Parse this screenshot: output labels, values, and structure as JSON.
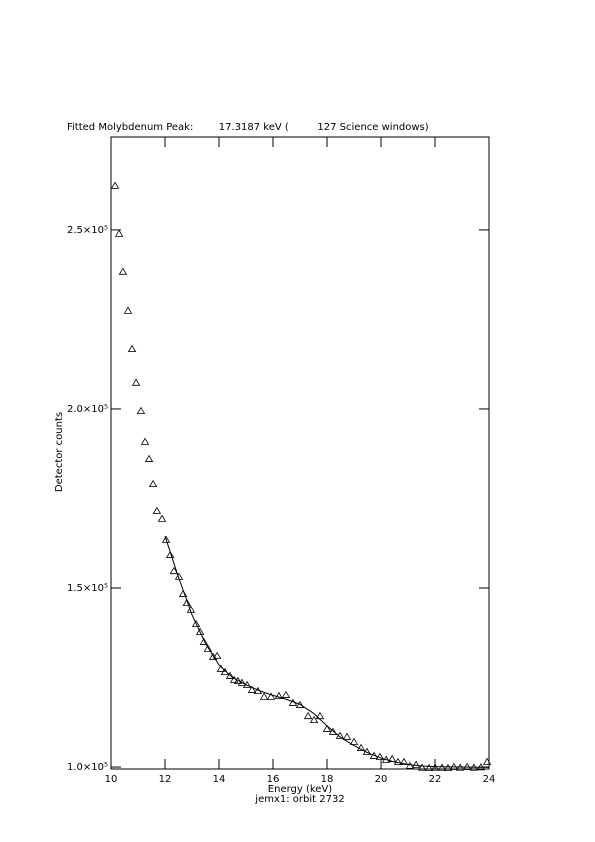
{
  "chart_data": {
    "type": "scatter",
    "title": "Fitted Molybdenum Peak:        17.3187 keV (         127 Science windows)",
    "xlabel": "Energy (keV)",
    "ylabel": "Detector counts",
    "subtitle": "jemx1: orbit 2732",
    "xlim": [
      10,
      24
    ],
    "ylim": [
      99450,
      275950
    ],
    "xticks": [
      10,
      12,
      14,
      16,
      18,
      20,
      22,
      24
    ],
    "yticks": [
      {
        "value": 100000,
        "label": "1.0×10⁵"
      },
      {
        "value": 150000,
        "label": "1.5×10⁵"
      },
      {
        "value": 200000,
        "label": "2.0×10⁵"
      },
      {
        "value": 250000,
        "label": "2.5×10⁵"
      }
    ],
    "color": "#000000",
    "series": [
      {
        "style": "triangle",
        "x": [
          10.15,
          10.3,
          10.44,
          10.63,
          10.78,
          10.93,
          11.11,
          11.26,
          11.41,
          11.56,
          11.7,
          11.89,
          12.04,
          12.19,
          12.33,
          12.52,
          12.67,
          12.81,
          12.96,
          13.15,
          13.3,
          13.44,
          13.59,
          13.78,
          13.93,
          14.07,
          14.22,
          14.41,
          14.56,
          14.7,
          14.85,
          15.04,
          15.22,
          15.44,
          15.67,
          15.93,
          16.22,
          16.48,
          16.74,
          17.0,
          17.3,
          17.52,
          17.74,
          18.0,
          18.22,
          18.48,
          18.74,
          19.0,
          19.26,
          19.48,
          19.74,
          19.96,
          20.19,
          20.41,
          20.63,
          20.85,
          21.07,
          21.3,
          21.52,
          21.78,
          22.0,
          22.26,
          22.48,
          22.7,
          22.93,
          23.19,
          23.44,
          23.7,
          23.93
        ],
        "values": [
          262300,
          248900,
          238300,
          227400,
          216700,
          207300,
          199400,
          190800,
          186000,
          179000,
          171500,
          169300,
          163400,
          159200,
          154700,
          153100,
          148300,
          145800,
          143900,
          139900,
          137700,
          134900,
          133000,
          130700,
          131000,
          127400,
          126500,
          125400,
          124300,
          124000,
          123500,
          122900,
          121500,
          121200,
          119600,
          119600,
          119800,
          120100,
          117900,
          117300,
          114200,
          113100,
          114200,
          110600,
          109800,
          108700,
          108400,
          107000,
          105300,
          104200,
          103100,
          102800,
          102000,
          102200,
          101400,
          101400,
          100300,
          100600,
          99800,
          99700,
          99800,
          99800,
          99700,
          100000,
          99800,
          100000,
          99800,
          99900,
          101400
        ]
      },
      {
        "style": "line",
        "x": [
          12.0,
          12.5,
          13.0,
          13.5,
          14.0,
          14.5,
          15.0,
          15.5,
          16.0,
          16.5,
          17.0,
          17.5,
          18.0,
          18.5,
          19.0,
          19.5,
          20.0,
          20.5,
          21.0,
          21.5,
          22.0,
          23.0,
          24.0
        ],
        "values": [
          164500,
          153000,
          142500,
          134500,
          128500,
          125000,
          123000,
          121300,
          120000,
          118900,
          117500,
          115000,
          111500,
          108300,
          106000,
          104000,
          102500,
          101400,
          100700,
          100300,
          100100,
          100000,
          99900
        ]
      }
    ]
  }
}
